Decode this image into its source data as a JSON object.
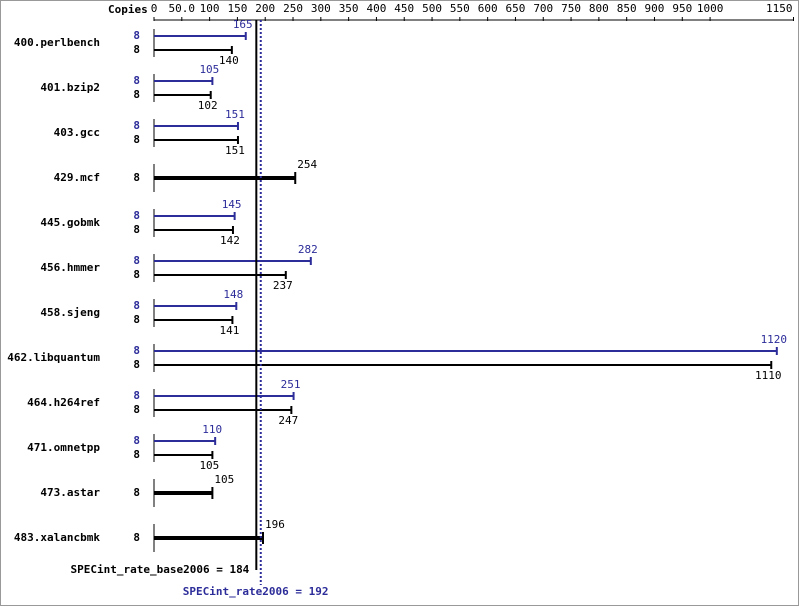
{
  "chart_data": {
    "type": "bar",
    "orientation": "horizontal",
    "copies_header": "Copies",
    "categories": [
      "400.perlbench",
      "401.bzip2",
      "403.gcc",
      "429.mcf",
      "445.gobmk",
      "456.hmmer",
      "458.sjeng",
      "462.libquantum",
      "464.h264ref",
      "471.omnetpp",
      "473.astar",
      "483.xalancbmk"
    ],
    "series": [
      {
        "color": "#2d2d9a",
        "copies": [
          8,
          8,
          8,
          null,
          8,
          8,
          8,
          8,
          8,
          8,
          null,
          null
        ],
        "values": [
          165,
          105,
          151,
          null,
          145,
          282,
          148,
          1120,
          251,
          110,
          null,
          null
        ]
      },
      {
        "color": "#000000",
        "copies": [
          8,
          8,
          8,
          8,
          8,
          8,
          8,
          8,
          8,
          8,
          8,
          8
        ],
        "values": [
          140,
          102,
          151,
          254,
          142,
          237,
          141,
          1110,
          247,
          105,
          105,
          196
        ]
      }
    ],
    "xlim": [
      0,
      1150
    ],
    "xticks": [
      0,
      {
        "value": 50,
        "label": "50.0"
      },
      100,
      150,
      200,
      250,
      300,
      350,
      400,
      450,
      500,
      550,
      600,
      650,
      700,
      750,
      800,
      850,
      900,
      950,
      1000,
      1150
    ],
    "reference_lines": [
      {
        "label": "SPECint_rate_base2006 = 184",
        "value": 184,
        "color": "#000000",
        "dotted": false
      },
      {
        "label": "SPECint_rate2006 = 192",
        "value": 192,
        "color": "#2d2d9a",
        "dotted": true
      }
    ]
  }
}
